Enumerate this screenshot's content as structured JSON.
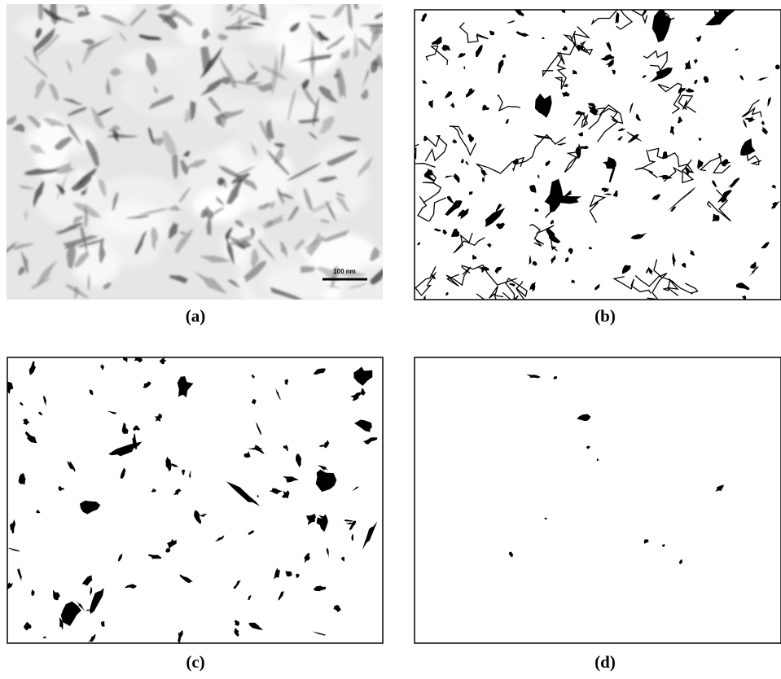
{
  "panels": [
    {
      "label": "(a)",
      "scale_bar": "100 nm"
    },
    {
      "label": "(b)"
    },
    {
      "label": "(c)"
    },
    {
      "label": "(d)"
    }
  ]
}
